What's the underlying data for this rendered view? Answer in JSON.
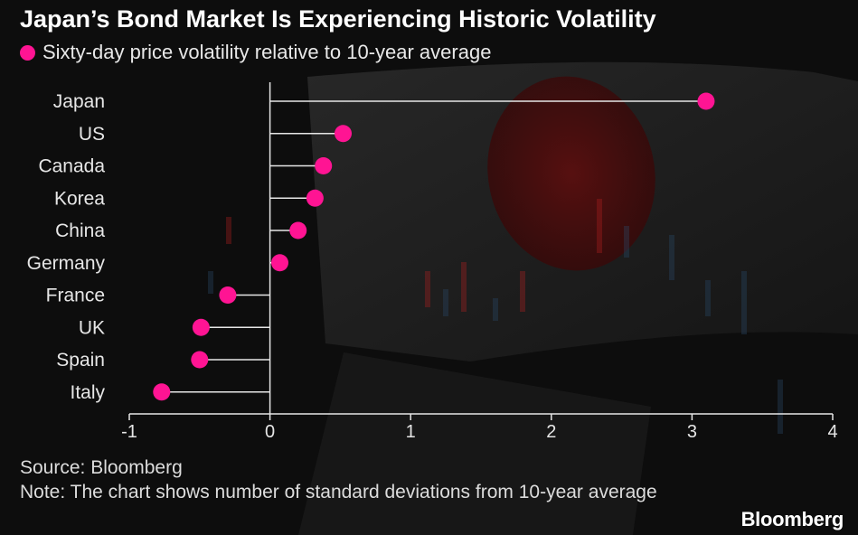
{
  "title": "Japan’s Bond Market Is Experiencing Historic Volatility",
  "legend": {
    "label": "Sixty-day price volatility relative to 10-year average",
    "color": "#ff1493"
  },
  "footer": {
    "source": "Source: Bloomberg",
    "note": "Note: The chart shows number of standard deviations from 10-year average"
  },
  "brand": "Bloomberg",
  "colors": {
    "point": "#ff1493",
    "stem": "#e6e6e6",
    "axis": "#e6e6e6",
    "text": "#e6e6e6"
  },
  "chart_data": {
    "type": "lollipop",
    "categories": [
      "Japan",
      "US",
      "Canada",
      "Korea",
      "China",
      "Germany",
      "France",
      "UK",
      "Spain",
      "Italy"
    ],
    "values": [
      3.1,
      0.52,
      0.38,
      0.32,
      0.2,
      0.07,
      -0.3,
      -0.49,
      -0.5,
      -0.77
    ],
    "xlim": [
      -1,
      4
    ],
    "xticks": [
      -1,
      0,
      1,
      2,
      3,
      4
    ],
    "xlabel": "",
    "ylabel": "",
    "grid": false
  }
}
